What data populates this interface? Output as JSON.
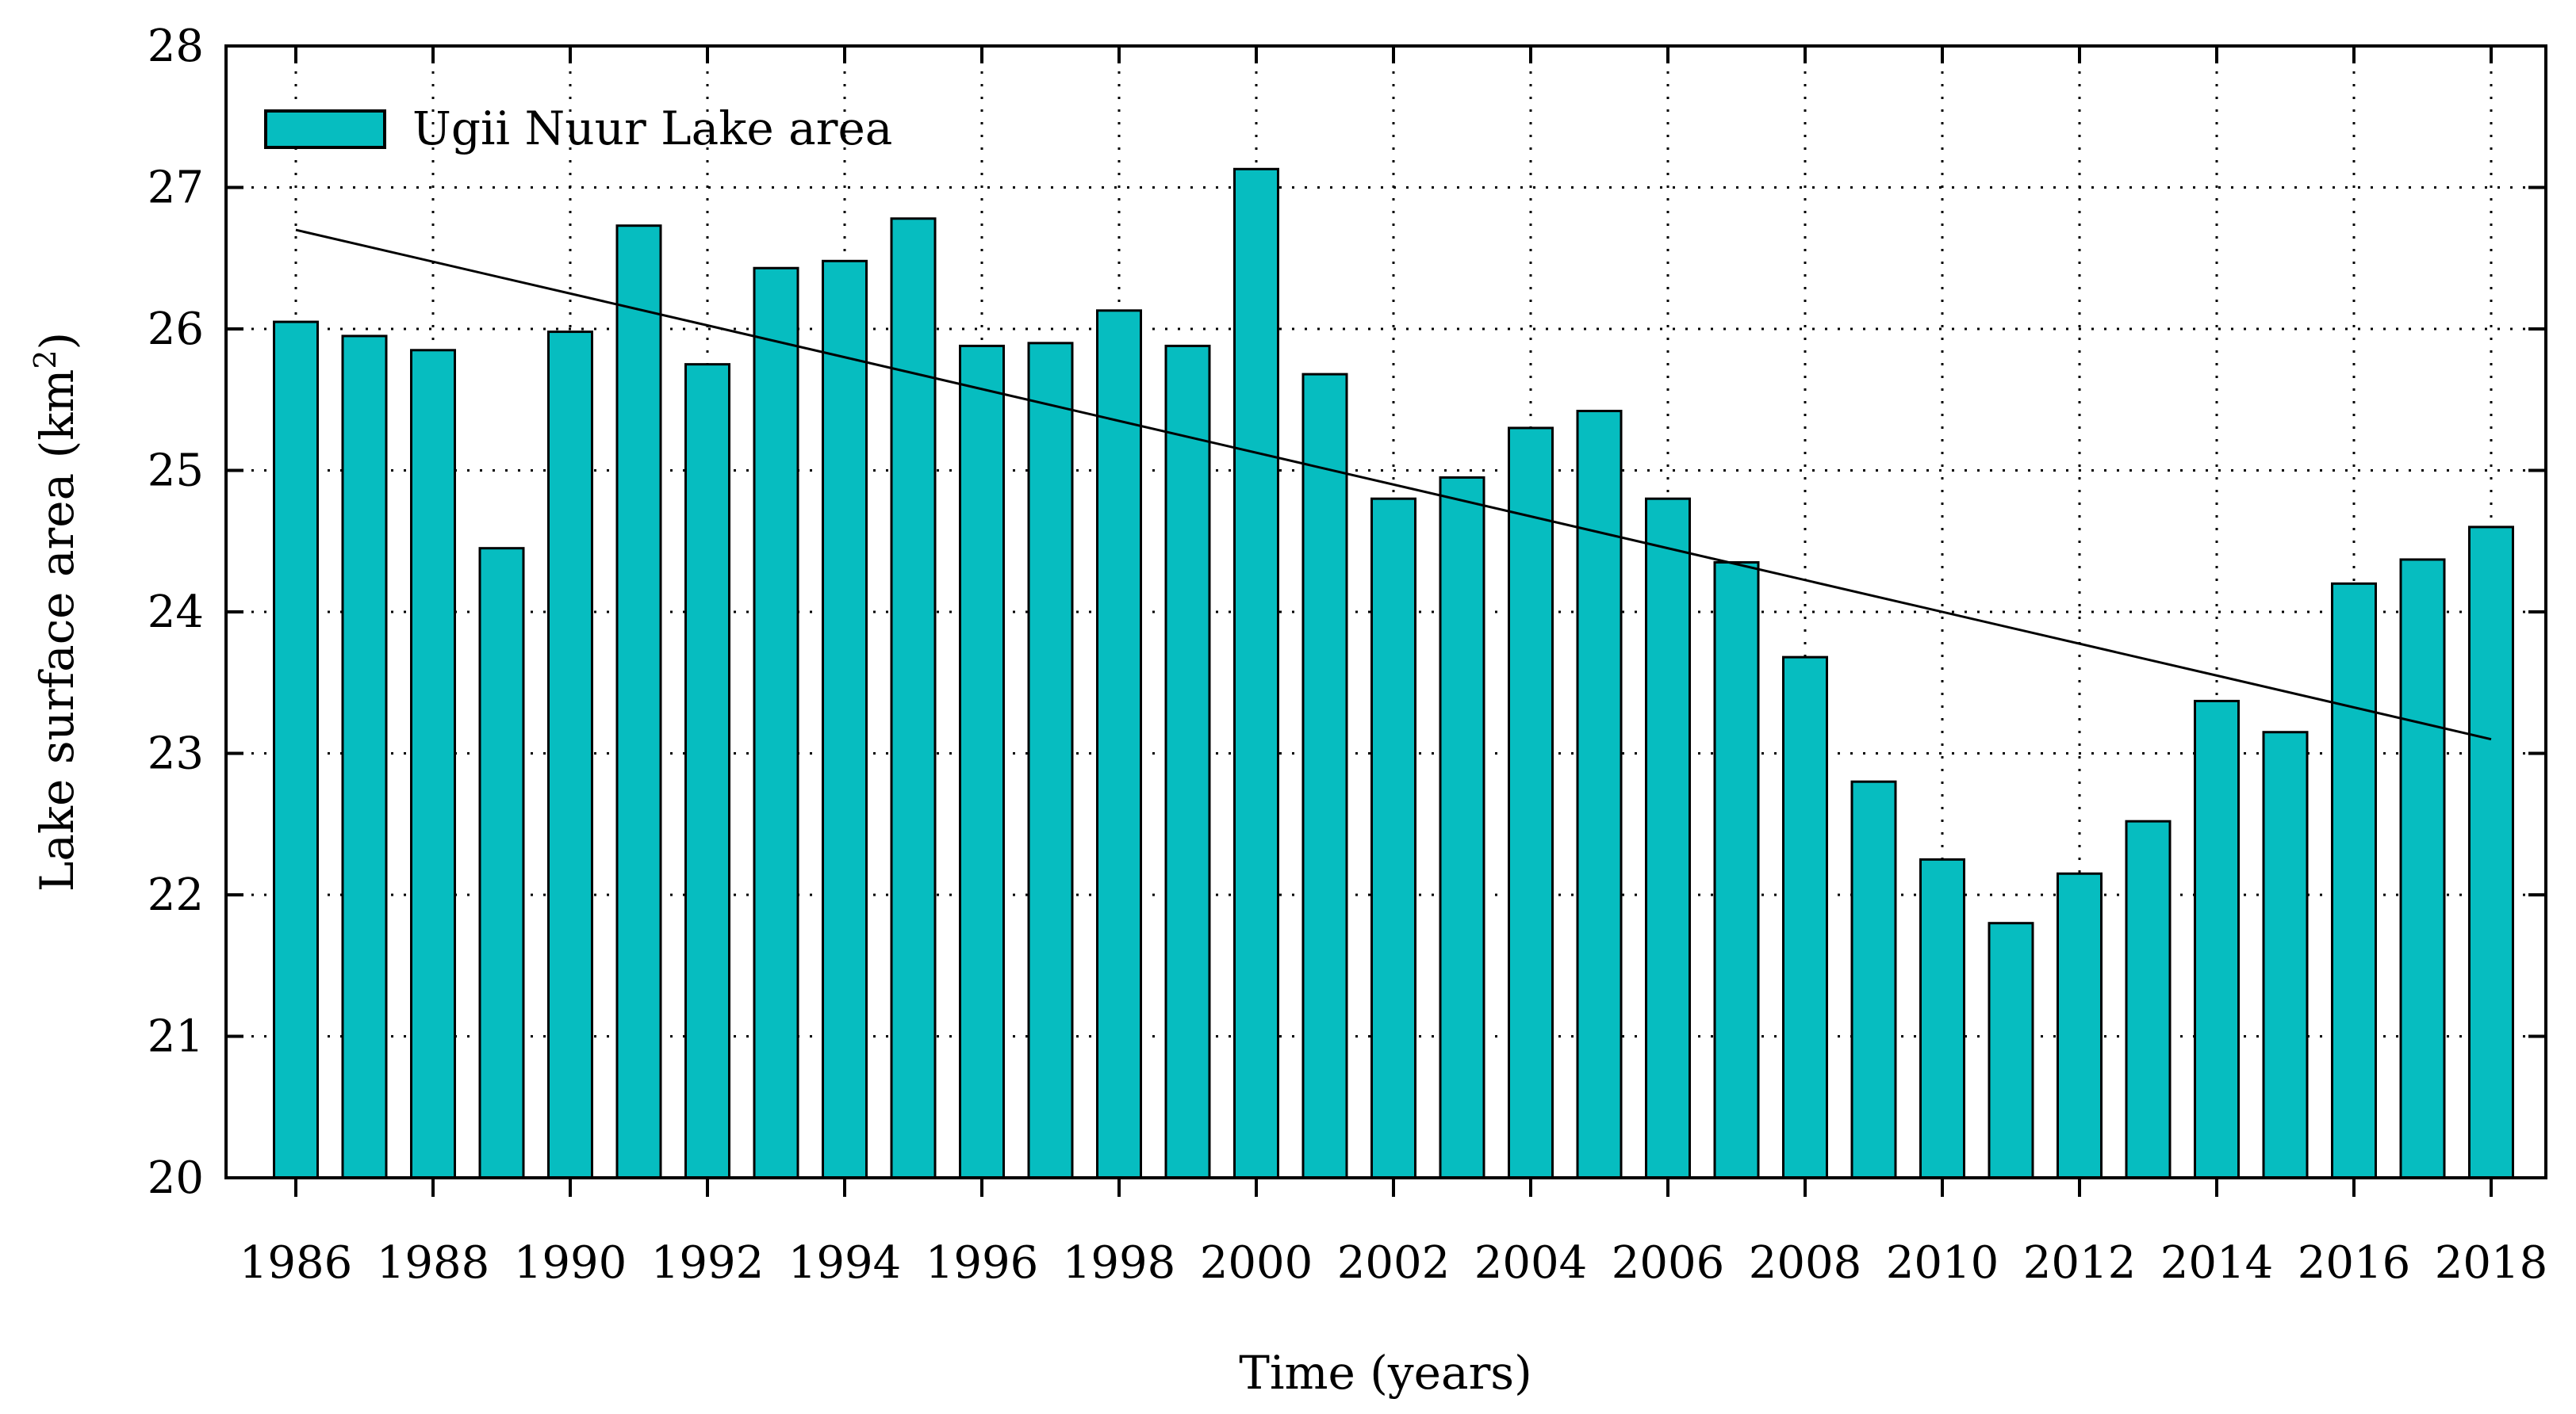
{
  "chart_data": {
    "type": "bar",
    "title": "",
    "xlabel": "Time (years)",
    "ylabel_main": "Lake surface area (km",
    "ylabel_sup": "2",
    "ylabel_close": ")",
    "ylim": [
      20,
      28
    ],
    "yticks": [
      20,
      21,
      22,
      23,
      24,
      25,
      26,
      27,
      28
    ],
    "xtick_labels": [
      "1986",
      "1988",
      "1990",
      "1992",
      "1994",
      "1996",
      "1998",
      "2000",
      "2002",
      "2004",
      "2006",
      "2008",
      "2010",
      "2012",
      "2014",
      "2016",
      "2018"
    ],
    "grid": true,
    "legend_position": "top-left",
    "colors": {
      "bar": "#06BDC0",
      "bar_edge": "#000000",
      "trend": "#000000",
      "grid": "#000000"
    },
    "series": [
      {
        "name": "Ugii Nuur Lake area",
        "categories": [
          1986,
          1987,
          1988,
          1989,
          1990,
          1991,
          1992,
          1993,
          1994,
          1995,
          1996,
          1997,
          1998,
          1999,
          2000,
          2001,
          2002,
          2003,
          2004,
          2005,
          2006,
          2007,
          2008,
          2009,
          2010,
          2011,
          2012,
          2013,
          2014,
          2015,
          2016,
          2017,
          2018
        ],
        "values": [
          26.05,
          25.95,
          25.85,
          24.45,
          25.98,
          26.73,
          25.75,
          26.43,
          26.48,
          26.78,
          25.88,
          25.9,
          26.13,
          25.88,
          27.13,
          25.68,
          24.8,
          24.95,
          25.3,
          25.42,
          24.8,
          24.35,
          23.68,
          22.8,
          22.25,
          21.8,
          22.15,
          22.52,
          23.37,
          23.15,
          24.2,
          24.37,
          24.6
        ]
      }
    ],
    "trendline": {
      "x": [
        1986,
        2018
      ],
      "y": [
        26.7,
        23.1
      ]
    }
  }
}
